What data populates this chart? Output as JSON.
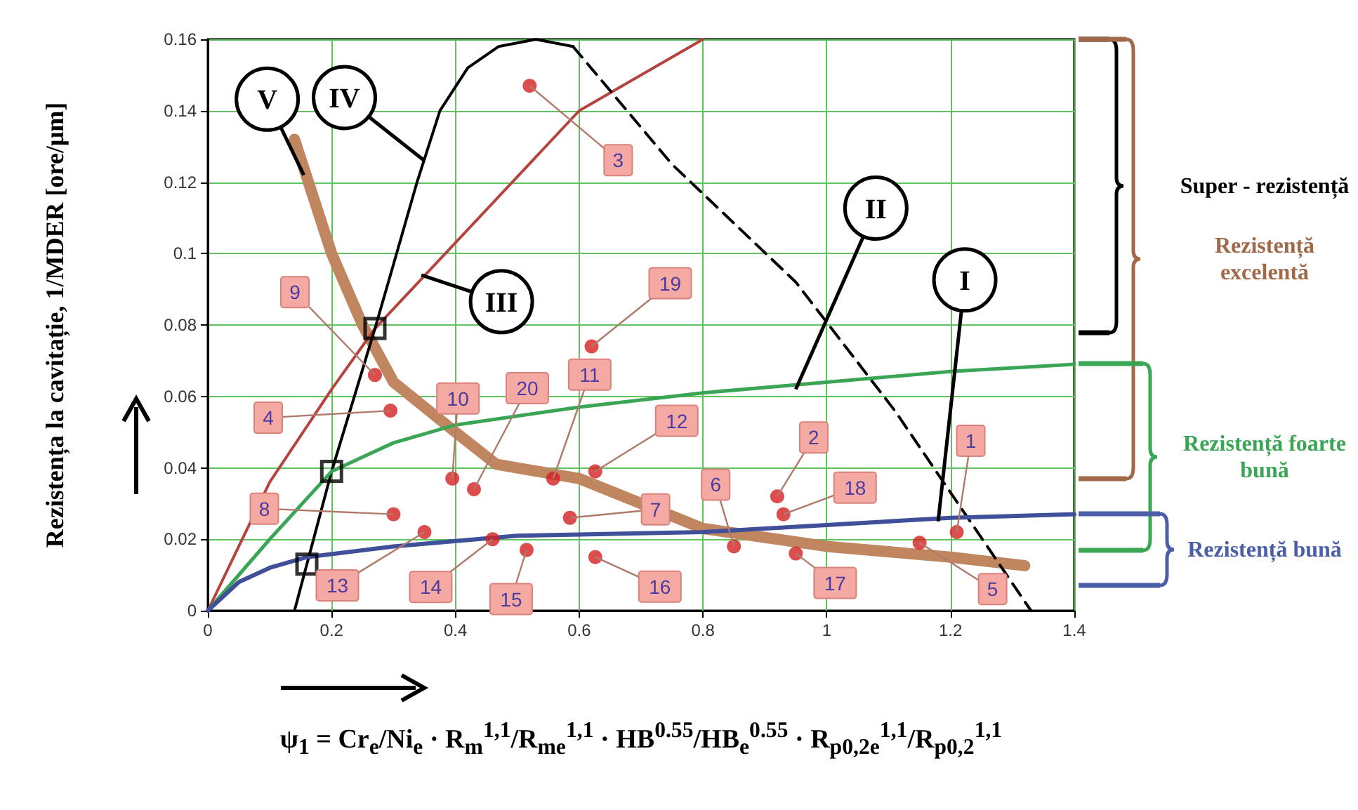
{
  "chart_data": {
    "type": "line",
    "xlabel": "ψ$_{1}$ = Cr$_{e}$/Ni$_{e}$ · R$_{m}$$^{1,1}$/R$_{me}$$^{1,1}$ · HB$^{0.55}$/HB$_{e}$$^{0.55}$ · R$_{p0,2e}$$^{1,1}$/R$_{p0,2}$$^{1,1}$",
    "ylabel": "Rezistența la cavitație, 1/MDER [ore/μm]",
    "xlim": [
      0,
      1.4
    ],
    "xticks": [
      0,
      0.2,
      0.4,
      0.6,
      0.8,
      1,
      1.2,
      1.4
    ],
    "ylim": [
      0,
      0.16
    ],
    "yticks": [
      0,
      0.02,
      0.04,
      0.06,
      0.08,
      0.1,
      0.12,
      0.14,
      0.16
    ],
    "grid": true,
    "marker": "none",
    "series": [
      {
        "type": "line",
        "color": "#b5443f",
        "x": [
          0,
          0.1,
          0.2,
          0.27,
          0.4,
          0.6,
          0.8
        ],
        "values": [
          0,
          0.036,
          0.062,
          0.079,
          0.103,
          0.14,
          0.16
        ]
      },
      {
        "type": "line",
        "color": "#000000",
        "x": [
          0.14,
          0.2,
          0.27,
          0.3,
          0.338,
          0.375,
          0.42,
          0.47,
          0.53,
          0.59
        ],
        "values": [
          0,
          0.039,
          0.079,
          0.097,
          0.12,
          0.14,
          0.152,
          0.158,
          0.16,
          0.158
        ]
      },
      {
        "type": "line",
        "color": "#000000",
        "line_style": "dashed",
        "x": [
          0.59,
          0.75,
          0.95,
          1.11,
          1.33
        ],
        "values": [
          0.158,
          0.125,
          0.092,
          0.056,
          0
        ]
      },
      {
        "type": "line",
        "color": "#3aa655",
        "x": [
          0,
          0.1,
          0.2,
          0.3,
          0.4,
          0.6,
          0.8,
          1,
          1.2,
          1.4
        ],
        "values": [
          0,
          0.02,
          0.039,
          0.047,
          0.052,
          0.057,
          0.061,
          0.064,
          0.067,
          0.069
        ]
      },
      {
        "type": "line",
        "color": "#3f4f9a",
        "x": [
          0,
          0.05,
          0.1,
          0.16,
          0.3,
          0.5,
          0.8,
          1,
          1.2,
          1.4
        ],
        "values": [
          0,
          0.008,
          0.012,
          0.015,
          0.018,
          0.021,
          0.022,
          0.024,
          0.026,
          0.027
        ]
      },
      {
        "type": "line",
        "color": "#c08660",
        "x": [
          0.14,
          0.2,
          0.25,
          0.3,
          0.4,
          0.466,
          0.6,
          0.8,
          1,
          1.2,
          1.32
        ],
        "values": [
          0.132,
          0.1,
          0.08,
          0.064,
          0.05,
          0.041,
          0.037,
          0.023,
          0.018,
          0.015,
          0.0126
        ]
      },
      {
        "type": "scatter",
        "color": "#d42020",
        "marker": "circle",
        "x": [
          1.21,
          0.92,
          0.52,
          0.295,
          1.15,
          0.85,
          0.585,
          0.3,
          0.27,
          0.395,
          0.558,
          0.626,
          0.35,
          0.46,
          0.515,
          0.626,
          0.95,
          0.93,
          0.62,
          0.43
        ],
        "values": [
          0.022,
          0.032,
          0.147,
          0.056,
          0.019,
          0.018,
          0.026,
          0.027,
          0.066,
          0.037,
          0.037,
          0.039,
          0.022,
          0.02,
          0.017,
          0.015,
          0.016,
          0.027,
          0.074,
          0.034
        ]
      },
      {
        "type": "scatter",
        "color": "#000000",
        "marker": "square",
        "x": [
          0.27,
          0.2,
          0.16
        ],
        "values": [
          0.079,
          0.039,
          0.013
        ]
      }
    ],
    "annotations": [
      {
        "text": "I",
        "x": 1.18,
        "y": 0.025
      },
      {
        "text": "II",
        "x": 0.95,
        "y": 0.062
      },
      {
        "text": "III",
        "x": 0.345,
        "y": 0.094
      },
      {
        "text": "IV",
        "x": 0.35,
        "y": 0.126
      },
      {
        "text": "V",
        "x": 0.155,
        "y": 0.122
      },
      {
        "text": "1",
        "x": 1.21,
        "y": 0.022
      },
      {
        "text": "2",
        "x": 0.92,
        "y": 0.032
      },
      {
        "text": "3",
        "x": 0.52,
        "y": 0.147
      },
      {
        "text": "4",
        "x": 0.295,
        "y": 0.056
      },
      {
        "text": "5",
        "x": 1.15,
        "y": 0.019
      },
      {
        "text": "6",
        "x": 0.85,
        "y": 0.018
      },
      {
        "text": "7",
        "x": 0.585,
        "y": 0.026
      },
      {
        "text": "8",
        "x": 0.3,
        "y": 0.027
      },
      {
        "text": "9",
        "x": 0.27,
        "y": 0.066
      },
      {
        "text": "10",
        "x": 0.395,
        "y": 0.037
      },
      {
        "text": "11",
        "x": 0.558,
        "y": 0.037
      },
      {
        "text": "12",
        "x": 0.626,
        "y": 0.039
      },
      {
        "text": "13",
        "x": 0.35,
        "y": 0.022
      },
      {
        "text": "14",
        "x": 0.46,
        "y": 0.02
      },
      {
        "text": "15",
        "x": 0.515,
        "y": 0.017
      },
      {
        "text": "16",
        "x": 0.626,
        "y": 0.015
      },
      {
        "text": "17",
        "x": 0.95,
        "y": 0.016
      },
      {
        "text": "18",
        "x": 0.93,
        "y": 0.027
      },
      {
        "text": "19",
        "x": 0.62,
        "y": 0.074
      },
      {
        "text": "20",
        "x": 0.43,
        "y": 0.034
      },
      "Super - rezistență",
      "Rezistență excelentă",
      "Rezistență foarte bună",
      "Rezistență bună"
    ]
  }
}
